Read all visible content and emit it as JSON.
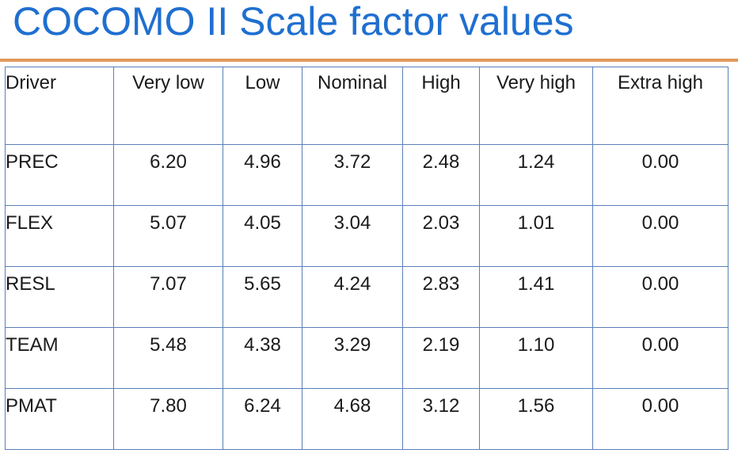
{
  "title": "COCOMO II Scale factor values",
  "colors": {
    "title": "#1f6fd0",
    "rule": "#e29a5a",
    "border": "#5a7fb8"
  },
  "table": {
    "headers": [
      "Driver",
      "Very low",
      "Low",
      "Nominal",
      "High",
      "Very high",
      "Extra high"
    ],
    "rows": [
      [
        "PREC",
        "6.20",
        "4.96",
        "3.72",
        "2.48",
        "1.24",
        "0.00"
      ],
      [
        "FLEX",
        "5.07",
        "4.05",
        "3.04",
        "2.03",
        "1.01",
        "0.00"
      ],
      [
        "RESL",
        "7.07",
        "5.65",
        "4.24",
        "2.83",
        "1.41",
        "0.00"
      ],
      [
        "TEAM",
        "5.48",
        "4.38",
        "3.29",
        "2.19",
        "1.10",
        "0.00"
      ],
      [
        "PMAT",
        "7.80",
        "6.24",
        "4.68",
        "3.12",
        "1.56",
        "0.00"
      ]
    ]
  }
}
